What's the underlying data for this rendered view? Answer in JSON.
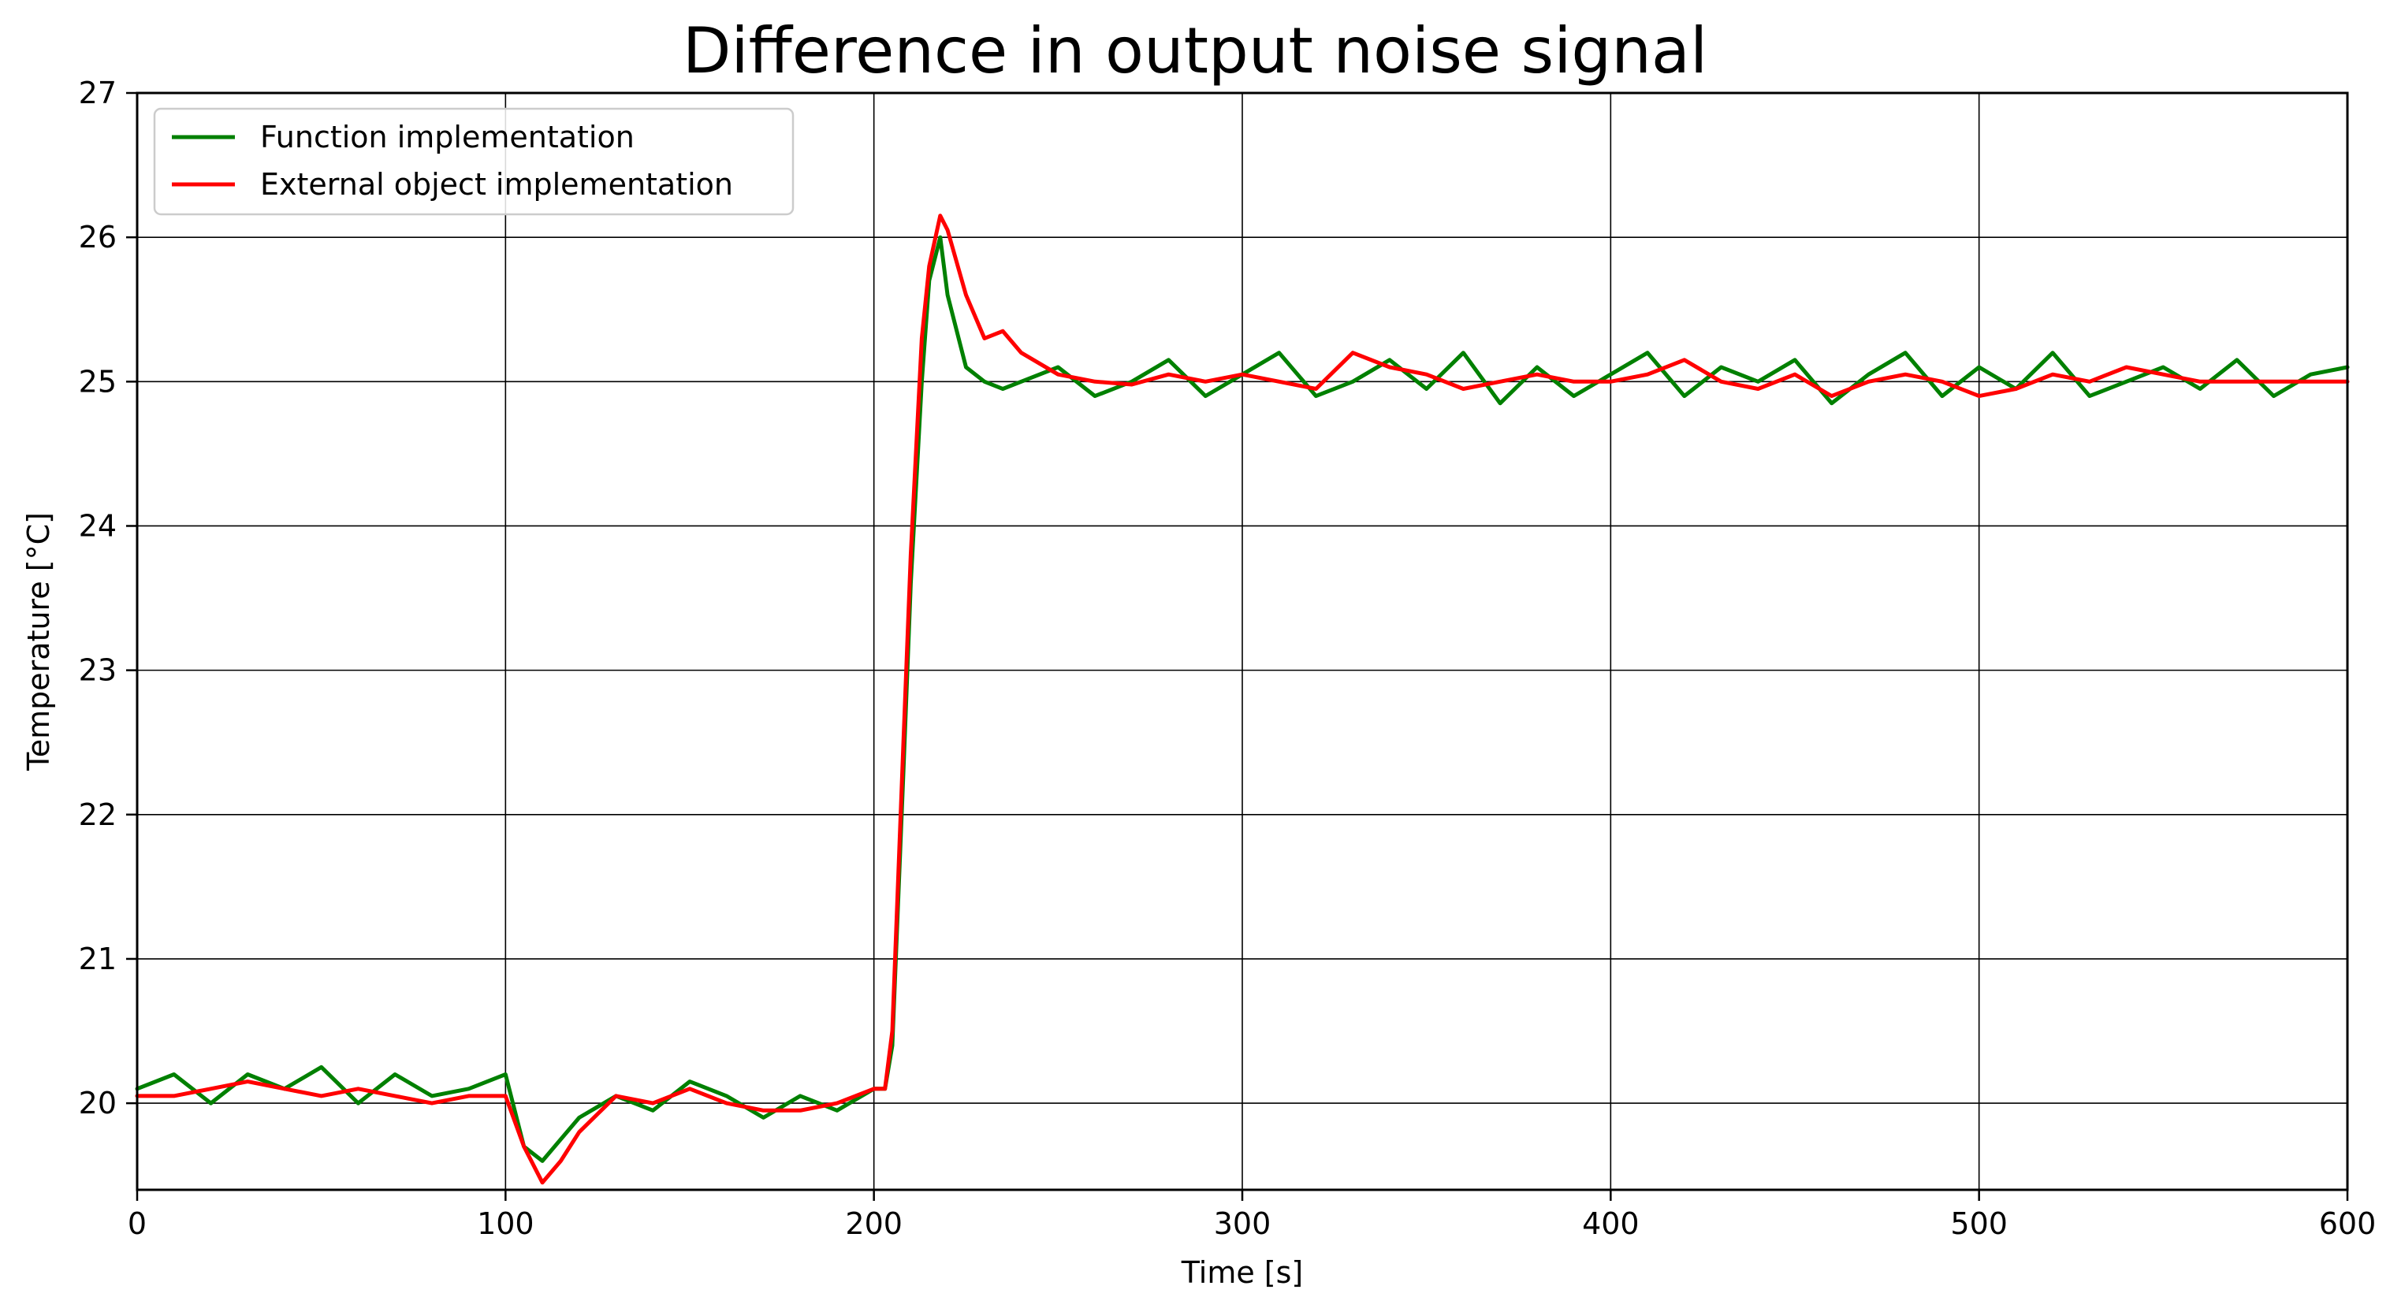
{
  "chart_data": {
    "type": "line",
    "title": "Difference in output noise signal",
    "xlabel": "Time [s]",
    "ylabel": "Temperature [°C]",
    "xlim": [
      0,
      600
    ],
    "ylim": [
      19.4,
      27
    ],
    "xticks": [
      0,
      100,
      200,
      300,
      400,
      500,
      600
    ],
    "yticks": [
      20,
      21,
      22,
      23,
      24,
      25,
      26,
      27
    ],
    "grid": true,
    "legend_position": "top-left",
    "x": [
      0,
      10,
      20,
      30,
      40,
      50,
      60,
      70,
      80,
      90,
      100,
      105,
      110,
      115,
      120,
      130,
      140,
      150,
      160,
      170,
      180,
      190,
      200,
      203,
      205,
      208,
      210,
      213,
      215,
      218,
      220,
      225,
      230,
      235,
      240,
      250,
      260,
      270,
      280,
      290,
      300,
      310,
      320,
      330,
      340,
      350,
      360,
      370,
      380,
      390,
      400,
      410,
      420,
      430,
      440,
      450,
      460,
      470,
      480,
      490,
      500,
      510,
      520,
      530,
      540,
      550,
      560,
      570,
      580,
      590,
      600
    ],
    "series": [
      {
        "name": "Function implementation",
        "color": "#008000",
        "values": [
          20.1,
          20.2,
          20.0,
          20.2,
          20.1,
          20.25,
          20.0,
          20.2,
          20.05,
          20.1,
          20.2,
          19.7,
          19.6,
          19.75,
          19.9,
          20.05,
          19.95,
          20.15,
          20.05,
          19.9,
          20.05,
          19.95,
          20.1,
          20.1,
          20.4,
          22.3,
          23.6,
          25.0,
          25.7,
          26.0,
          25.6,
          25.1,
          25.0,
          24.95,
          25.0,
          25.1,
          24.9,
          25.0,
          25.15,
          24.9,
          25.05,
          25.2,
          24.9,
          25.0,
          25.15,
          24.95,
          25.2,
          24.85,
          25.1,
          24.9,
          25.05,
          25.2,
          24.9,
          25.1,
          25.0,
          25.15,
          24.85,
          25.05,
          25.2,
          24.9,
          25.1,
          24.95,
          25.2,
          24.9,
          25.0,
          25.1,
          24.95,
          25.15,
          24.9,
          25.05,
          25.1
        ]
      },
      {
        "name": "External object implementation",
        "color": "#ff0000",
        "values": [
          20.05,
          20.05,
          20.1,
          20.15,
          20.1,
          20.05,
          20.1,
          20.05,
          20.0,
          20.05,
          20.05,
          19.7,
          19.45,
          19.6,
          19.8,
          20.05,
          20.0,
          20.1,
          20.0,
          19.95,
          19.95,
          20.0,
          20.1,
          20.1,
          20.5,
          22.5,
          23.8,
          25.3,
          25.8,
          26.15,
          26.05,
          25.6,
          25.3,
          25.35,
          25.2,
          25.05,
          25.0,
          24.98,
          25.05,
          25.0,
          25.05,
          25.0,
          24.95,
          25.2,
          25.1,
          25.05,
          24.95,
          25.0,
          25.05,
          25.0,
          25.0,
          25.05,
          25.15,
          25.0,
          24.95,
          25.05,
          24.9,
          25.0,
          25.05,
          25.0,
          24.9,
          24.95,
          25.05,
          25.0,
          25.1,
          25.05,
          25.0,
          25.0,
          25.0,
          25.0,
          25.0
        ]
      }
    ]
  }
}
